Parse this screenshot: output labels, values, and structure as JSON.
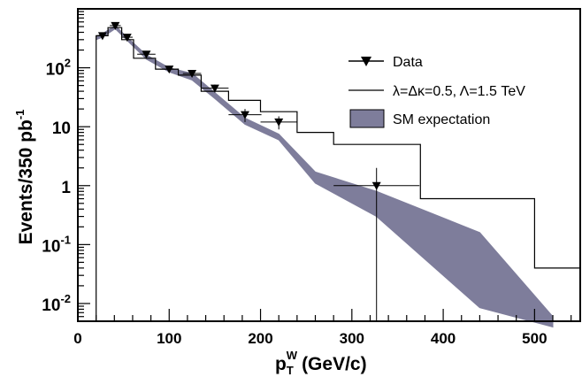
{
  "chart_data": {
    "type": "line",
    "xlabel": "p",
    "xlabel_sub": "T",
    "xlabel_sup": "W",
    "xlabel_unit": "(GeV/c)",
    "ylabel": "Events/350 pb",
    "ylabel_sup": "-1",
    "xlim": [
      0,
      550
    ],
    "ylim": [
      0.005,
      1000
    ],
    "yscale": "log",
    "grid": false,
    "legend_position": "top-right",
    "x_ticks": [
      {
        "value": 0,
        "label": "0"
      },
      {
        "value": 100,
        "label": "100"
      },
      {
        "value": 200,
        "label": "200"
      },
      {
        "value": 300,
        "label": "300"
      },
      {
        "value": 400,
        "label": "400"
      },
      {
        "value": 500,
        "label": "500"
      }
    ],
    "y_ticks": [
      {
        "value": 0.01,
        "base": "10",
        "exp": "-2"
      },
      {
        "value": 0.1,
        "base": "10",
        "exp": "-1"
      },
      {
        "value": 1,
        "base": "1",
        "exp": ""
      },
      {
        "value": 10,
        "base": "10",
        "exp": ""
      },
      {
        "value": 100,
        "base": "10",
        "exp": "2"
      }
    ],
    "series": [
      {
        "name": "Data",
        "kind": "points",
        "color": "#000000",
        "points": [
          {
            "x": 27,
            "y": 350,
            "xerr": 6,
            "ylo": 330,
            "yhi": 370
          },
          {
            "x": 41,
            "y": 520,
            "xerr": 6,
            "ylo": 495,
            "yhi": 545
          },
          {
            "x": 54,
            "y": 330,
            "xerr": 6,
            "ylo": 310,
            "yhi": 350
          },
          {
            "x": 75,
            "y": 170,
            "xerr": 10,
            "ylo": 155,
            "yhi": 185
          },
          {
            "x": 100,
            "y": 95,
            "xerr": 10,
            "ylo": 85,
            "yhi": 106
          },
          {
            "x": 125,
            "y": 80,
            "xerr": 10,
            "ylo": 71,
            "yhi": 90
          },
          {
            "x": 150,
            "y": 45,
            "xerr": 15,
            "ylo": 38,
            "yhi": 52
          },
          {
            "x": 183,
            "y": 16,
            "xerr": 18,
            "ylo": 12,
            "yhi": 20
          },
          {
            "x": 220,
            "y": 12,
            "xerr": 20,
            "ylo": 9,
            "yhi": 15
          },
          {
            "x": 327,
            "y": 1,
            "xerr": 47,
            "ylo": 0.005,
            "yhi": 2
          }
        ]
      },
      {
        "name": "λ=Δκ=0.5, Λ=1.5 TeV",
        "kind": "step",
        "color": "#000000",
        "bins": [
          {
            "lo": 20,
            "hi": 33,
            "y": 350
          },
          {
            "lo": 33,
            "hi": 48,
            "y": 480
          },
          {
            "lo": 48,
            "hi": 61,
            "y": 300
          },
          {
            "lo": 61,
            "hi": 85,
            "y": 145
          },
          {
            "lo": 85,
            "hi": 110,
            "y": 95
          },
          {
            "lo": 110,
            "hi": 135,
            "y": 75
          },
          {
            "lo": 135,
            "hi": 165,
            "y": 40
          },
          {
            "lo": 165,
            "hi": 200,
            "y": 28
          },
          {
            "lo": 200,
            "hi": 240,
            "y": 18
          },
          {
            "lo": 240,
            "hi": 280,
            "y": 8
          },
          {
            "lo": 280,
            "hi": 375,
            "y": 5
          },
          {
            "lo": 375,
            "hi": 500,
            "y": 0.6
          },
          {
            "lo": 500,
            "hi": 550,
            "y": 0.04
          }
        ]
      },
      {
        "name": "SM expectation",
        "kind": "band",
        "color": "#7e7d9b",
        "x": [
          20,
          27,
          41,
          54,
          75,
          100,
          125,
          150,
          183,
          220,
          260,
          327,
          440,
          520
        ],
        "upper": [
          340,
          380,
          520,
          330,
          165,
          100,
          80,
          38,
          14,
          7.5,
          1.7,
          0.8,
          0.16,
          0.006
        ],
        "lower": [
          300,
          330,
          460,
          290,
          140,
          85,
          62,
          30,
          11,
          6,
          1.1,
          0.3,
          0.0085,
          0.004
        ]
      }
    ]
  }
}
